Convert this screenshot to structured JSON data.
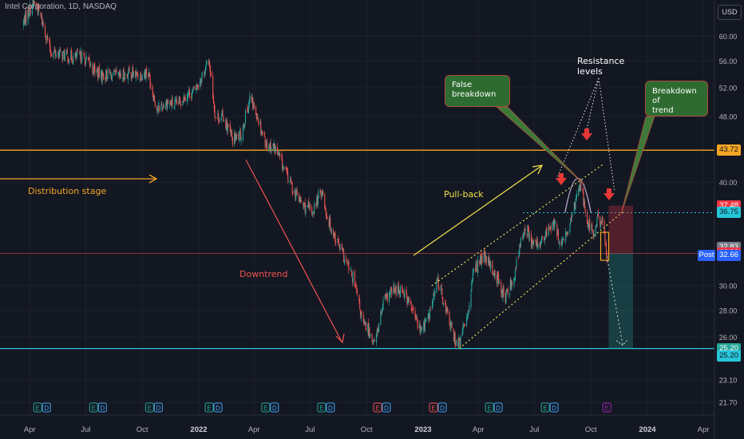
{
  "symbol_title": "Intel Corporation, 1D, NASDAQ",
  "currency_button": "USD",
  "colors": {
    "background": "#131722",
    "grid": "#1e222d",
    "axis_text": "#b2b5be",
    "up": "#26a69a",
    "down": "#ef5350",
    "resistance": "#f5a623",
    "support": "#26c6da",
    "channel": "#e8e35a",
    "red_arrow": "#e53935",
    "annotation_box": "#2e6b30"
  },
  "annotations": {
    "distribution": "Distribution stage",
    "downtrend": "Downtrend",
    "pullback": "Pull-back",
    "false_breakdown": [
      "False",
      "breakdown"
    ],
    "resistance_levels": [
      "Resistance",
      "levels"
    ],
    "breakdown_trend": [
      "Breakdown of",
      "trend"
    ]
  },
  "chart_data": {
    "type": "candlestick",
    "title": "Intel Corporation, 1D, NASDAQ",
    "x_ticks": [
      "Apr",
      "Jul",
      "Oct",
      "2022",
      "Apr",
      "Jul",
      "Oct",
      "2023",
      "Apr",
      "Jul",
      "Oct",
      "2024",
      "Apr"
    ],
    "y_ticks": [
      "60.00",
      "56.00",
      "52.00",
      "48.00",
      "40.00",
      "30.00",
      "28.00",
      "26.00",
      "23.10",
      "21.70"
    ],
    "y_scale": "log",
    "ylim": [
      20.9,
      66.0
    ],
    "horizontal_levels": [
      {
        "value": 43.72,
        "label": "43.72",
        "color": "#f5a623"
      },
      {
        "value": 25.2,
        "label": "25.20",
        "color": "#26c6da"
      },
      {
        "value": 36.75,
        "label": "36.75",
        "color": "#26c6da",
        "style": "dotted"
      },
      {
        "value": 32.83,
        "label": "32.83",
        "color": "#ef5350"
      }
    ],
    "price_labels": [
      {
        "value": 43.72,
        "label": "43.72",
        "bg": "#f5a623",
        "fg": "#131722"
      },
      {
        "value": 37.48,
        "label": "37.48",
        "bg": "#f23645",
        "fg": "#ffffff"
      },
      {
        "value": 36.75,
        "label": "36.75",
        "bg": "#26c6da",
        "fg": "#131722"
      },
      {
        "value": 33.35,
        "label": "32.83",
        "bg": "#787b86",
        "fg": "#ffffff"
      },
      {
        "value": 32.83,
        "label": "32.83",
        "bg": "#f23645",
        "fg": "#ffffff"
      },
      {
        "value": 32.66,
        "label": "32.66",
        "bg": "#2962ff",
        "fg": "#ffffff",
        "prefix": "Post"
      },
      {
        "value": 25.2,
        "label": "25.20",
        "bg": "#26a69a",
        "fg": "#ffffff"
      },
      {
        "value": 24.7,
        "label": "25.20",
        "bg": "#26c6da",
        "fg": "#131722"
      }
    ],
    "price_path": [
      [
        "2021-03-20",
        62.0
      ],
      [
        "2021-03-30",
        64.5
      ],
      [
        "2021-04-10",
        66.0
      ],
      [
        "2021-04-20",
        63.0
      ],
      [
        "2021-05-05",
        57.5
      ],
      [
        "2021-05-25",
        57.0
      ],
      [
        "2021-06-10",
        56.5
      ],
      [
        "2021-06-25",
        56.8
      ],
      [
        "2021-07-10",
        55.2
      ],
      [
        "2021-07-25",
        53.8
      ],
      [
        "2021-08-10",
        54.0
      ],
      [
        "2021-08-25",
        53.5
      ],
      [
        "2021-09-10",
        54.2
      ],
      [
        "2021-09-25",
        53.8
      ],
      [
        "2021-10-10",
        54.5
      ],
      [
        "2021-10-25",
        49.0
      ],
      [
        "2021-11-10",
        50.0
      ],
      [
        "2021-11-25",
        49.5
      ],
      [
        "2021-12-10",
        51.0
      ],
      [
        "2021-12-25",
        51.5
      ],
      [
        "2022-01-10",
        54.5
      ],
      [
        "2022-01-18",
        56.0
      ],
      [
        "2022-01-28",
        48.0
      ],
      [
        "2022-02-10",
        48.0
      ],
      [
        "2022-02-25",
        45.0
      ],
      [
        "2022-03-10",
        45.5
      ],
      [
        "2022-03-25",
        50.5
      ],
      [
        "2022-04-05",
        48.5
      ],
      [
        "2022-04-20",
        44.5
      ],
      [
        "2022-05-05",
        44.0
      ],
      [
        "2022-05-20",
        41.5
      ],
      [
        "2022-06-05",
        39.0
      ],
      [
        "2022-06-20",
        37.5
      ],
      [
        "2022-07-05",
        36.8
      ],
      [
        "2022-07-20",
        39.2
      ],
      [
        "2022-07-29",
        36.3
      ],
      [
        "2022-08-10",
        34.5
      ],
      [
        "2022-08-25",
        32.5
      ],
      [
        "2022-09-10",
        30.5
      ],
      [
        "2022-09-25",
        27.0
      ],
      [
        "2022-10-05",
        26.5
      ],
      [
        "2022-10-14",
        25.5
      ],
      [
        "2022-10-28",
        28.5
      ],
      [
        "2022-11-10",
        29.5
      ],
      [
        "2022-11-28",
        29.8
      ],
      [
        "2022-12-10",
        28.5
      ],
      [
        "2022-12-28",
        26.5
      ],
      [
        "2023-01-10",
        27.5
      ],
      [
        "2023-01-25",
        30.5
      ],
      [
        "2023-02-05",
        28.5
      ],
      [
        "2023-02-20",
        26.0
      ],
      [
        "2023-03-01",
        25.5
      ],
      [
        "2023-03-15",
        28.0
      ],
      [
        "2023-03-25",
        31.5
      ],
      [
        "2023-04-10",
        32.5
      ],
      [
        "2023-04-28",
        31.0
      ],
      [
        "2023-05-15",
        29.0
      ],
      [
        "2023-05-30",
        31.0
      ],
      [
        "2023-06-15",
        35.5
      ],
      [
        "2023-06-30",
        33.5
      ],
      [
        "2023-07-15",
        34.0
      ],
      [
        "2023-07-31",
        35.8
      ],
      [
        "2023-08-15",
        33.5
      ],
      [
        "2023-08-31",
        36.0
      ],
      [
        "2023-09-07",
        38.5
      ],
      [
        "2023-09-14",
        40.0
      ],
      [
        "2023-09-25",
        36.0
      ],
      [
        "2023-10-06",
        34.5
      ],
      [
        "2023-10-13",
        36.5
      ],
      [
        "2023-10-20",
        35.5
      ],
      [
        "2023-10-27",
        32.8
      ]
    ],
    "drawings": {
      "channel": {
        "upper": [
          [
            "2023-01-15",
            30.0
          ],
          [
            "2023-10-20",
            42.0
          ]
        ],
        "lower": [
          [
            "2023-03-01",
            25.2
          ],
          [
            "2023-11-25",
            37.0
          ]
        ]
      },
      "resistance_zone_dates": [
        "2023-08-20",
        "2023-10-01"
      ],
      "breakdown_box": {
        "dates": [
          "2023-10-17",
          "2023-10-30"
        ],
        "prices": [
          32.2,
          34.8
        ]
      },
      "projection": [
        [
          "2023-10-27",
          32.83
        ],
        [
          "2023-11-22",
          25.2
        ]
      ],
      "earnings_events": [
        "2021-04-23",
        "2021-07-23",
        "2021-10-22",
        "2022-01-27",
        "2022-04-29",
        "2022-07-29",
        "2022-10-28",
        "2023-01-27",
        "2023-04-28",
        "2023-07-28",
        "2023-10-27"
      ]
    }
  }
}
